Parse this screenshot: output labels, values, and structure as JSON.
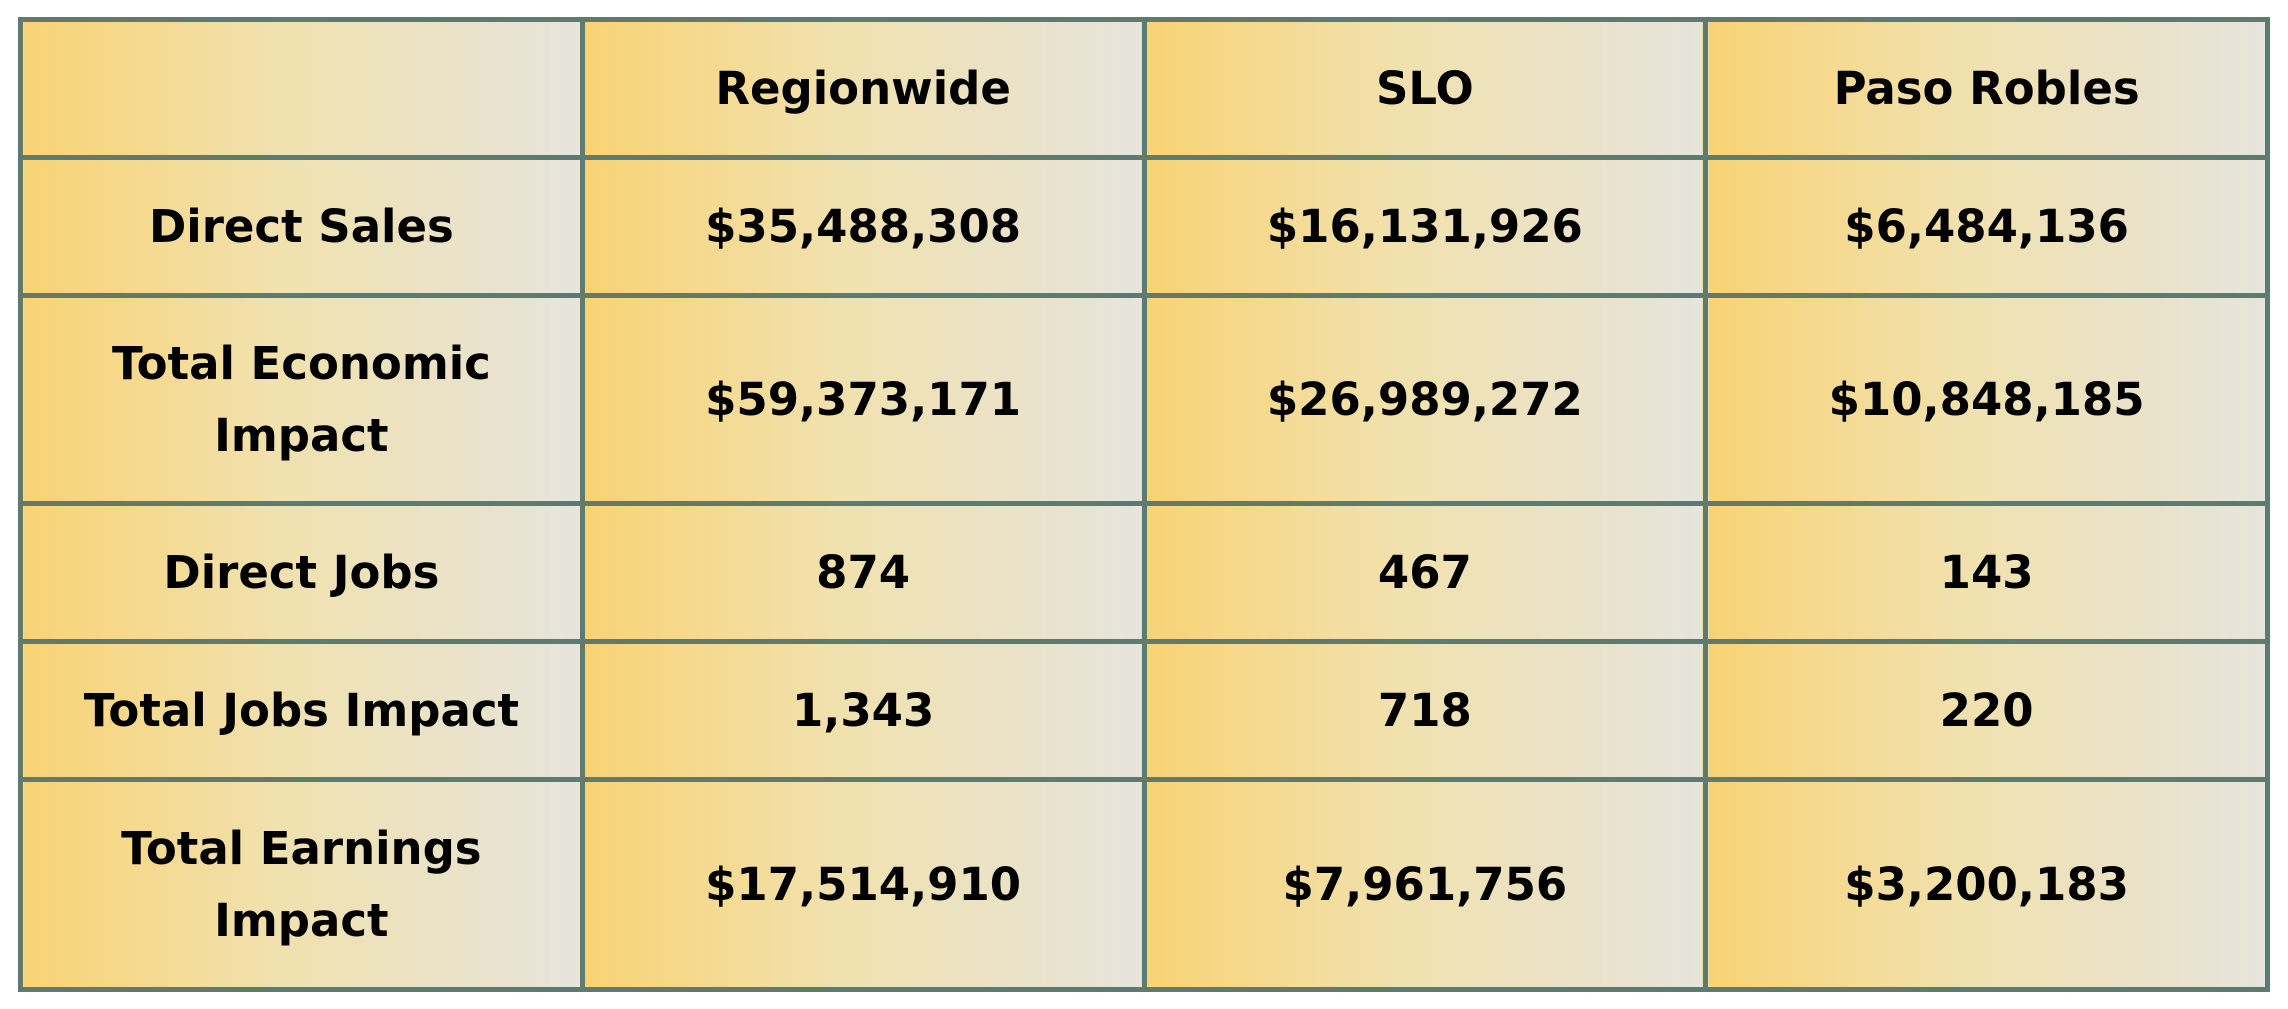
{
  "chart_data": {
    "type": "table",
    "columns": [
      "",
      "Regionwide",
      "SLO",
      "Paso Robles"
    ],
    "rows": [
      {
        "label": "Direct Sales",
        "values": [
          "$35,488,308",
          "$16,131,926",
          "$6,484,136"
        ]
      },
      {
        "label": "Total Economic Impact",
        "values": [
          "$59,373,171",
          "$26,989,272",
          "$10,848,185"
        ]
      },
      {
        "label": "Direct Jobs",
        "values": [
          "874",
          "467",
          "143"
        ]
      },
      {
        "label": "Total Jobs Impact",
        "values": [
          "1,343",
          "718",
          "220"
        ]
      },
      {
        "label": "Total Earnings Impact",
        "values": [
          "$17,514,910",
          "$7,961,756",
          "$3,200,183"
        ]
      }
    ],
    "colors": {
      "border": "#5f7b70",
      "cell_gradient_start": "#f8d375",
      "cell_gradient_end": "#e6e4dc",
      "text": "#000000"
    }
  }
}
